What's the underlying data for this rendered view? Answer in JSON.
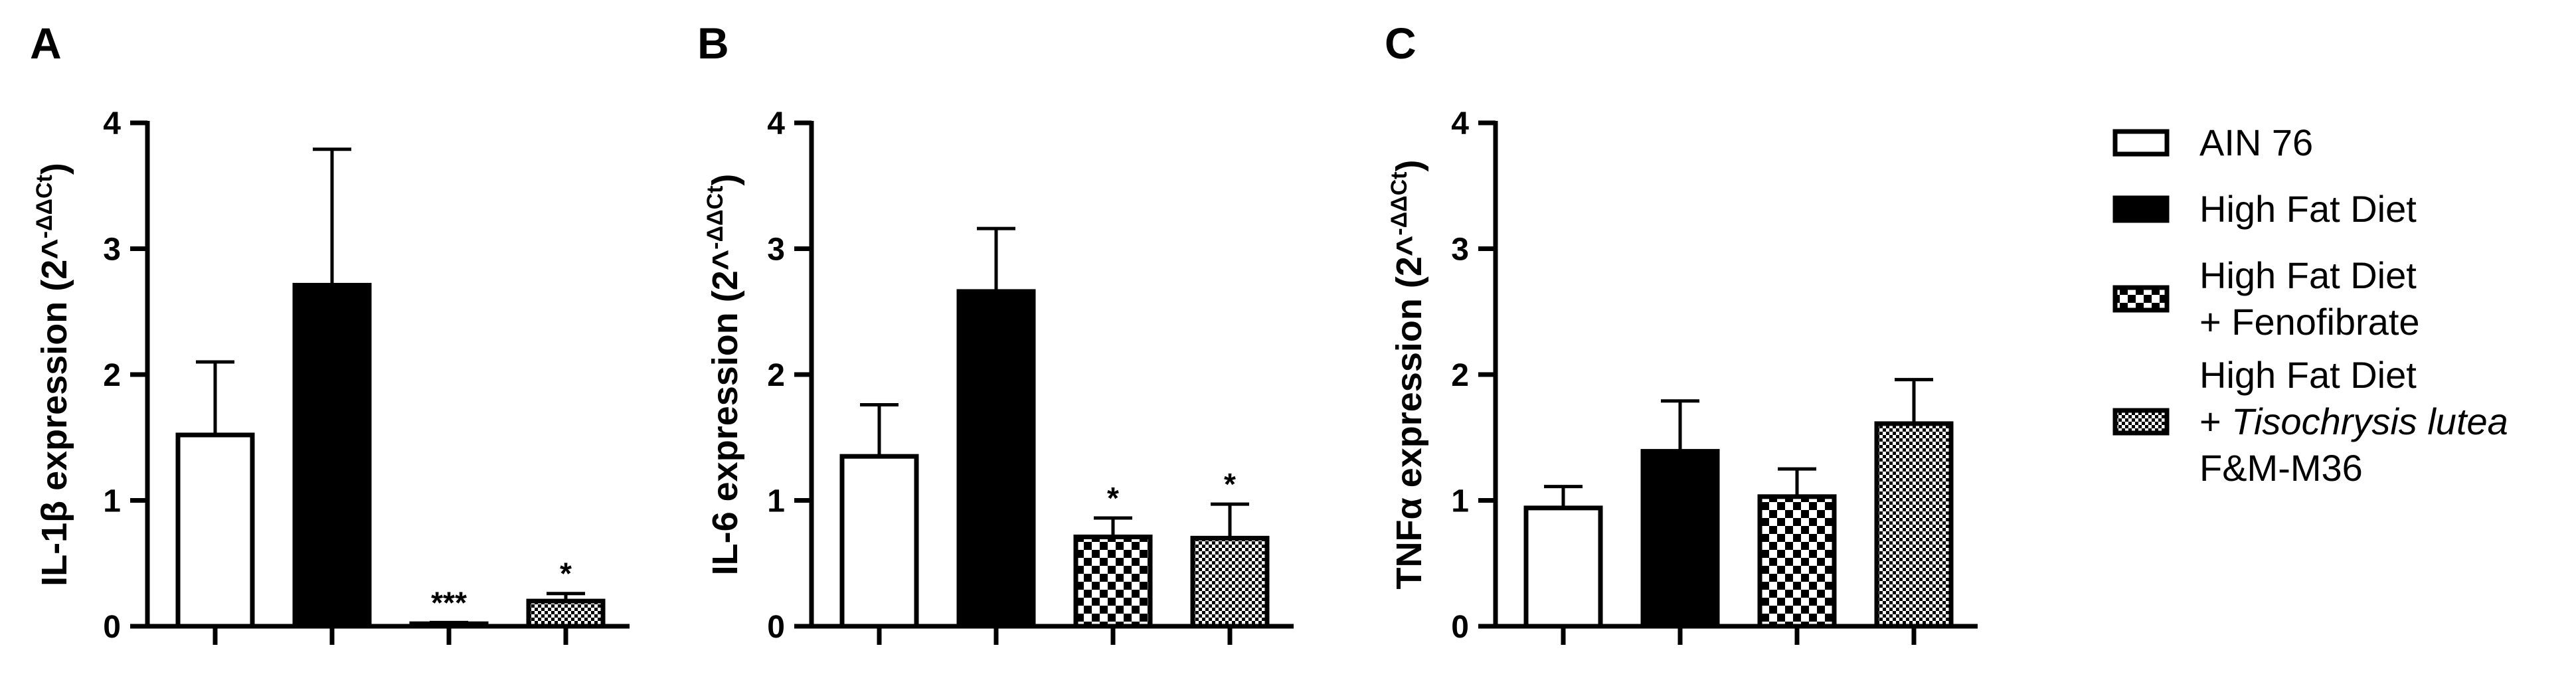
{
  "chart_data": [
    {
      "type": "bar",
      "panel_label": "A",
      "ylabel": {
        "main": "IL-1β expression (2^",
        "sup": "-ΔΔCt",
        "close": ")"
      },
      "ylim": [
        0,
        4
      ],
      "yticks": [
        "0",
        "1",
        "2",
        "3",
        "4"
      ],
      "series": [
        {
          "name": "AIN 76",
          "value": 1.52,
          "error": 0.58,
          "sig": ""
        },
        {
          "name": "High Fat Diet",
          "value": 2.71,
          "error": 1.08,
          "sig": ""
        },
        {
          "name": "High Fat Diet + Fenofibrate",
          "value": 0.02,
          "error": 0.01,
          "sig": "***"
        },
        {
          "name": "High Fat Diet + Tisochrysis lutea F&M-M36",
          "value": 0.2,
          "error": 0.06,
          "sig": "*"
        }
      ]
    },
    {
      "type": "bar",
      "panel_label": "B",
      "ylabel": {
        "main": "IL-6 expression (2^",
        "sup": "-ΔΔCt",
        "close": ")"
      },
      "ylim": [
        0,
        4
      ],
      "yticks": [
        "0",
        "1",
        "2",
        "3",
        "4"
      ],
      "series": [
        {
          "name": "AIN 76",
          "value": 1.35,
          "error": 0.41,
          "sig": ""
        },
        {
          "name": "High Fat Diet",
          "value": 2.66,
          "error": 0.5,
          "sig": ""
        },
        {
          "name": "High Fat Diet + Fenofibrate",
          "value": 0.71,
          "error": 0.15,
          "sig": "*"
        },
        {
          "name": "High Fat Diet + Tisochrysis lutea F&M-M36",
          "value": 0.7,
          "error": 0.27,
          "sig": "*"
        }
      ]
    },
    {
      "type": "bar",
      "panel_label": "C",
      "ylabel": {
        "main": "TNFα expression (2^",
        "sup": "-ΔΔCt",
        "close": ")"
      },
      "ylim": [
        0,
        4
      ],
      "yticks": [
        "0",
        "1",
        "2",
        "3",
        "4"
      ],
      "series": [
        {
          "name": "AIN 76",
          "value": 0.94,
          "error": 0.17,
          "sig": ""
        },
        {
          "name": "High Fat Diet",
          "value": 1.39,
          "error": 0.4,
          "sig": ""
        },
        {
          "name": "High Fat Diet + Fenofibrate",
          "value": 1.03,
          "error": 0.22,
          "sig": ""
        },
        {
          "name": "High Fat Diet + Tisochrysis lutea F&M-M36",
          "value": 1.61,
          "error": 0.35,
          "sig": ""
        }
      ]
    }
  ],
  "legend": {
    "items": [
      {
        "lines": [
          "AIN 76"
        ],
        "fill": "white"
      },
      {
        "lines": [
          "High Fat Diet"
        ],
        "fill": "black"
      },
      {
        "lines": [
          "High Fat Diet",
          "+ Fenofibrate"
        ],
        "fill": "checker-coarse"
      },
      {
        "lines": [
          "High Fat Diet",
          "+ Tisochrysis lutea",
          "F&M-M36"
        ],
        "italic": "Tisochrysis lutea",
        "fill": "checker-fine"
      }
    ]
  },
  "colors": {
    "ink": "#000000",
    "background": "#ffffff"
  }
}
